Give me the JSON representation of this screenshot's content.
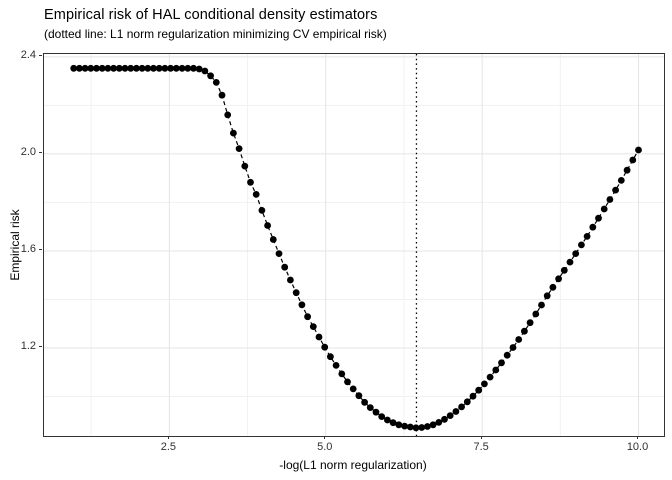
{
  "chart_data": {
    "type": "scatter",
    "title": "Empirical risk of HAL conditional density estimators",
    "subtitle": "(dotted line: L1 norm regularization minimizing CV empirical risk)",
    "xlabel": "-log(L1 norm regularization)",
    "ylabel": "Empirical risk",
    "x_tick_values": [
      2.5,
      5.0,
      7.5,
      10.0
    ],
    "x_tick_labels": [
      "2.5",
      "5.0",
      "7.5",
      "10.0"
    ],
    "y_tick_values": [
      2.4,
      2.0,
      1.6,
      1.2
    ],
    "y_tick_labels": [
      "2.4",
      "2.0",
      "1.6",
      "1.2"
    ],
    "x_minor_values": [
      1.25,
      3.75,
      6.25,
      8.75
    ],
    "y_minor_values": [
      1.0,
      1.4,
      1.8,
      2.2
    ],
    "x_range": [
      0.496,
      10.407
    ],
    "y_range": [
      0.837,
      2.412
    ],
    "grid": true,
    "legend": "none",
    "vline_x": 6.45,
    "vline_style": "dotted",
    "point_color": "#000000",
    "point_radius": 3.4,
    "line_style": "dashed",
    "line_color": "#000000",
    "major_grid_color": "#e4e4e4",
    "minor_grid_color": "#f1f1f1",
    "panel_border_color": "#333333",
    "min_point": {
      "x": 6.44,
      "y": 0.871
    },
    "x_rule": {
      "start": 0.97,
      "step": 0.0912,
      "count": 100
    },
    "y": [
      2.353,
      2.353,
      2.353,
      2.353,
      2.353,
      2.353,
      2.353,
      2.353,
      2.353,
      2.353,
      2.353,
      2.353,
      2.353,
      2.353,
      2.353,
      2.353,
      2.353,
      2.353,
      2.353,
      2.353,
      2.353,
      2.353,
      2.35,
      2.342,
      2.322,
      2.295,
      2.242,
      2.161,
      2.086,
      2.022,
      1.95,
      1.883,
      1.833,
      1.767,
      1.705,
      1.647,
      1.589,
      1.533,
      1.48,
      1.428,
      1.378,
      1.329,
      1.288,
      1.245,
      1.203,
      1.164,
      1.128,
      1.093,
      1.06,
      1.031,
      1.003,
      0.976,
      0.954,
      0.935,
      0.917,
      0.903,
      0.892,
      0.883,
      0.878,
      0.874,
      0.871,
      0.872,
      0.876,
      0.883,
      0.893,
      0.906,
      0.921,
      0.938,
      0.957,
      0.978,
      1.001,
      1.026,
      1.052,
      1.08,
      1.109,
      1.139,
      1.17,
      1.202,
      1.235,
      1.269,
      1.304,
      1.34,
      1.377,
      1.415,
      1.45,
      1.485,
      1.52,
      1.554,
      1.589,
      1.625,
      1.66,
      1.698,
      1.735,
      1.773,
      1.812,
      1.851,
      1.891,
      1.933,
      1.975,
      2.016
    ]
  }
}
